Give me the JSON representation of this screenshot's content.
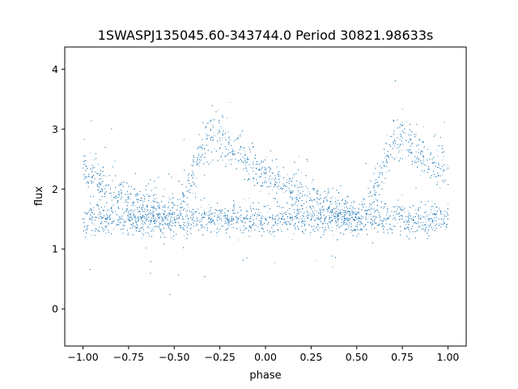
{
  "chart_data": {
    "type": "scatter",
    "title": "1SWASPJ135045.60-343744.0 Period 30821.98633s",
    "xlabel": "phase",
    "ylabel": "flux",
    "xlim": [
      -1.1,
      1.1
    ],
    "ylim": [
      -0.62,
      4.37
    ],
    "xticks": [
      -1.0,
      -0.75,
      -0.5,
      -0.25,
      0.0,
      0.25,
      0.5,
      0.75,
      1.0
    ],
    "xtick_labels": [
      "−1.00",
      "−0.75",
      "−0.50",
      "−0.25",
      "0.00",
      "0.25",
      "0.50",
      "0.75",
      "1.00"
    ],
    "yticks": [
      0,
      1,
      2,
      3,
      4
    ],
    "ytick_labels": [
      "0",
      "1",
      "2",
      "3",
      "4"
    ],
    "grid": false,
    "marker_color": "#1f77b4",
    "series": [
      {
        "x": [
          -1.0,
          -0.95,
          -0.9,
          -0.85,
          -0.8,
          -0.75,
          -0.7,
          -0.65,
          -0.6,
          -0.55,
          -0.5,
          -0.45,
          -0.4,
          -0.35,
          -0.3,
          -0.25,
          -0.2,
          -0.15,
          -0.1,
          -0.05,
          0.0,
          0.05,
          0.1,
          0.15,
          0.2,
          0.25,
          0.3,
          0.35,
          0.4,
          0.45,
          0.5,
          0.55,
          0.6,
          0.65,
          0.7,
          0.75,
          0.8,
          0.85,
          0.9,
          0.95,
          1.0
        ],
        "y": [
          1.5,
          1.5,
          1.5,
          1.5,
          1.5,
          1.5,
          1.5,
          1.5,
          1.5,
          1.5,
          1.5,
          1.5,
          1.5,
          1.5,
          1.5,
          1.5,
          1.5,
          1.5,
          1.5,
          1.5,
          1.5,
          1.5,
          1.5,
          1.5,
          1.5,
          1.5,
          1.5,
          1.5,
          1.5,
          1.5,
          1.5,
          1.5,
          1.5,
          1.5,
          1.5,
          1.5,
          1.5,
          1.5,
          1.5,
          1.5,
          1.5
        ]
      },
      {
        "x": [
          -1.0,
          -0.95,
          -0.9,
          -0.85,
          -0.8,
          -0.75,
          -0.7,
          -0.65,
          -0.6,
          -0.55,
          -0.5,
          -0.45,
          -0.4,
          -0.35,
          -0.3,
          -0.25,
          -0.2,
          -0.15,
          -0.1,
          -0.05,
          0.0,
          0.05,
          0.1,
          0.15,
          0.2,
          0.25,
          0.3,
          0.35,
          0.4,
          0.45,
          0.5,
          0.55,
          0.6,
          0.65,
          0.7,
          0.75,
          0.8,
          0.85,
          0.9,
          0.95,
          1.0
        ],
        "y": [
          2.35,
          2.2,
          2.1,
          2.0,
          1.9,
          1.85,
          1.78,
          1.72,
          1.67,
          1.62,
          1.58,
          1.8,
          2.3,
          2.7,
          2.85,
          2.85,
          2.75,
          2.6,
          2.45,
          2.35,
          2.25,
          2.15,
          2.05,
          1.95,
          1.88,
          1.82,
          1.76,
          1.7,
          1.66,
          1.62,
          1.58,
          1.6,
          1.9,
          2.4,
          2.75,
          2.85,
          2.75,
          2.6,
          2.5,
          2.4,
          2.35
        ]
      }
    ]
  }
}
